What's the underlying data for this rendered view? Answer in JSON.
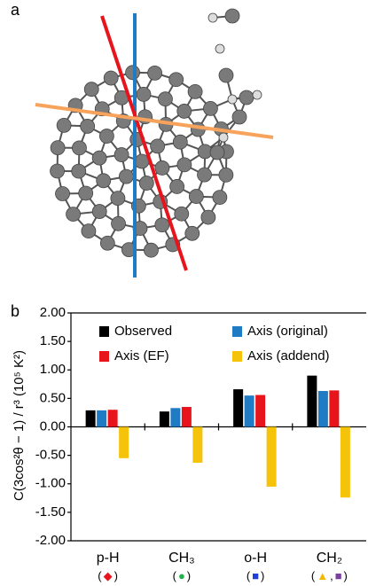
{
  "panel_labels": [
    "a",
    "b"
  ],
  "chart_data": {
    "type": "bar",
    "y_label": "C(3cos²θ − 1) / r³ (10⁵ K²)",
    "categories": [
      "p-H",
      "CH₃",
      "o-H",
      "CH₂"
    ],
    "category_notes": [
      [
        {
          "text": "(",
          "color": "#000000"
        },
        {
          "text": "◆",
          "color": "#e8141c"
        },
        {
          "text": ")",
          "color": "#000000"
        }
      ],
      [
        {
          "text": "(",
          "color": "#000000"
        },
        {
          "text": "●",
          "color": "#22b14c"
        },
        {
          "text": ")",
          "color": "#000000"
        }
      ],
      [
        {
          "text": "(",
          "color": "#000000"
        },
        {
          "text": "■",
          "color": "#1f3fd8"
        },
        {
          "text": ")",
          "color": "#000000"
        }
      ],
      [
        {
          "text": "(",
          "color": "#000000"
        },
        {
          "text": "▲",
          "color": "#f5b800"
        },
        {
          "text": ",",
          "color": "#000000"
        },
        {
          "text": "■",
          "color": "#7a3fa0"
        },
        {
          "text": ")",
          "color": "#000000"
        }
      ]
    ],
    "series": [
      {
        "name": "Observed",
        "color": "#000000",
        "values": [
          0.29,
          0.27,
          0.66,
          0.9
        ]
      },
      {
        "name": "Axis (original)",
        "color": "#1f7bc4",
        "values": [
          0.29,
          0.33,
          0.55,
          0.63
        ]
      },
      {
        "name": "Axis (EF)",
        "color": "#e8141c",
        "values": [
          0.3,
          0.35,
          0.56,
          0.64
        ]
      },
      {
        "name": "Axis (addend)",
        "color": "#f5c40a",
        "values": [
          -0.55,
          -0.63,
          -1.05,
          -1.24
        ]
      }
    ],
    "ylim": [
      -2,
      2
    ],
    "yticks": [
      {
        "value": -2,
        "label": "-2.00"
      },
      {
        "value": -1.5,
        "label": "-1.50"
      },
      {
        "value": -1,
        "label": "-1.00"
      },
      {
        "value": -0.5,
        "label": "-0.50"
      },
      {
        "value": 0,
        "label": "0.00"
      },
      {
        "value": 0.5,
        "label": "0.50"
      },
      {
        "value": 1,
        "label": "1.00"
      },
      {
        "value": 1.5,
        "label": "1.50"
      },
      {
        "value": 2,
        "label": "2.00"
      }
    ],
    "grid": false
  }
}
